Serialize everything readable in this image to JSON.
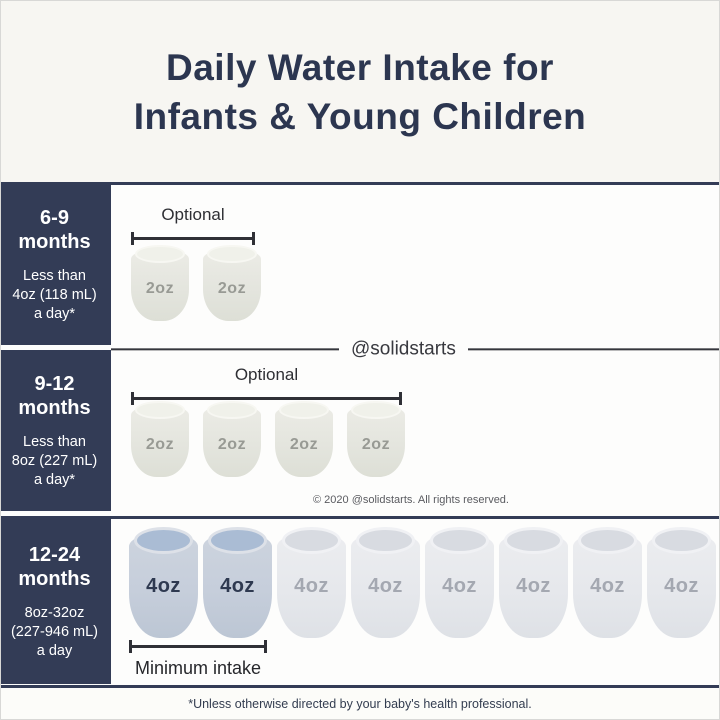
{
  "header": {
    "title_line1": "Daily Water Intake for",
    "title_line2": "Infants & Young Children"
  },
  "rows": [
    {
      "age_range": "6-9",
      "age_unit": "months",
      "amount_lines": [
        "Less than",
        "4oz (118 mL)",
        "a day*"
      ],
      "bracket_label": "Optional",
      "cups": [
        "2oz",
        "2oz"
      ]
    },
    {
      "age_range": "9-12",
      "age_unit": "months",
      "amount_lines": [
        "Less than",
        "8oz (227 mL)",
        "a day*"
      ],
      "bracket_label": "Optional",
      "cups": [
        "2oz",
        "2oz",
        "2oz",
        "2oz"
      ]
    },
    {
      "age_range": "12-24",
      "age_unit": "months",
      "amount_lines": [
        "8oz-32oz",
        "(227-946 mL)",
        "a day"
      ],
      "bracket_label": "Minimum intake",
      "cups": [
        "4oz",
        "4oz",
        "4oz",
        "4oz",
        "4oz",
        "4oz",
        "4oz",
        "4oz"
      ],
      "highlighted_cups": 2
    }
  ],
  "divider": {
    "handle": "@solidstarts"
  },
  "copyright": "© 2020 @solidstarts. All rights reserved.",
  "footnote": "*Unless otherwise directed by your baby's health professional.",
  "colors": {
    "navy": "#333c56",
    "header_bg": "#f7f6f2",
    "content_bg": "#fdfdfc",
    "blue_cup": "#c6cedb",
    "white_cup": "#e6e8ec",
    "warm_cup": "#e4e5de"
  }
}
